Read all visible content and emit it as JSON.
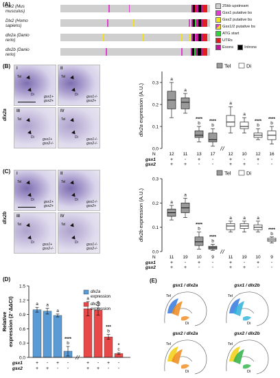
{
  "panel_a": {
    "letter": "(A)",
    "tracks": [
      {
        "label_line1": "Dlx2 (Mus",
        "label_line2": "musculus)"
      },
      {
        "label_line1": "Dlx2 (Homo",
        "label_line2": "sapiens)"
      },
      {
        "label_line1": "dlx2a (Danio",
        "label_line2": "rerio)"
      },
      {
        "label_line1": "dlx2b (Danio",
        "label_line2": "rerio)"
      }
    ],
    "legend": [
      {
        "label": "25kb upstream",
        "color": "#cfcfcf"
      },
      {
        "label": "Gsx1 putative bs",
        "color": "#e23bd0"
      },
      {
        "label": "Gsx2 putative bs",
        "color": "#f2e21e"
      },
      {
        "label": "Gsx1/2 putative bs",
        "color": "#f7a64a"
      },
      {
        "label": "ATG start",
        "color": "#2fd33a"
      },
      {
        "label": "UTRs",
        "color": "#e02020"
      },
      {
        "label": "Exons",
        "color": "#c01896"
      },
      {
        "label": "Introns",
        "color": "#000000"
      }
    ]
  },
  "panel_b": {
    "letter": "(B)",
    "gene": "dlx2a",
    "photos": [
      {
        "roman": "I",
        "tel": "Tel",
        "di": "Di",
        "g1": "gsx1+",
        "g2": "gsx2+"
      },
      {
        "roman": "II",
        "tel": "Tel",
        "di": "Di",
        "g1": "gsx1-/-",
        "g2": "gsx2+"
      },
      {
        "roman": "III",
        "tel": "Tel",
        "di": "Di",
        "g1": "gsx1+",
        "g2": "gsx2-/-"
      },
      {
        "roman": "IV",
        "tel": "Tel",
        "di": "Di",
        "g1": "gsx1-/-",
        "g2": "gsx2-/-"
      }
    ]
  },
  "panel_c": {
    "letter": "(C)",
    "gene": "dlx2b",
    "photos": [
      {
        "roman": "I",
        "tel": "Tel",
        "di": "Di",
        "g1": "gsx1+",
        "g2": "gsx2+"
      },
      {
        "roman": "II",
        "tel": "Tel",
        "di": "Di",
        "g1": "gsx1-/-",
        "g2": "gsx2+"
      },
      {
        "roman": "III",
        "tel": "Tel",
        "di": "Di",
        "g1": "gsx1+",
        "g2": "gsx2-/-"
      },
      {
        "roman": "IV",
        "tel": "Tel",
        "di": "Di",
        "g1": "gsx1-/-",
        "g2": "gsx2-/-"
      }
    ]
  },
  "panel_d": {
    "letter": "(D)"
  },
  "panel_e": {
    "letter": "(E)",
    "titles": [
      "gsx1 / dlx2a",
      "gsx1 / dlx2b",
      "gsx2 / dlx2a",
      "gsx2 / dlx2b"
    ],
    "tel": "Tel",
    "di": "Di"
  },
  "chart_data": [
    {
      "type": "box",
      "ylabel": "dlx2a expression (A.U.)",
      "ylim": [
        0,
        0.35
      ],
      "yticks": [
        0,
        0.1,
        0.2,
        0.3
      ],
      "legend": [
        "Tel",
        "Di"
      ],
      "colors": {
        "Tel": "#9a9a9a",
        "Di": "#ffffff"
      },
      "row_labels": [
        "N",
        "gsx1",
        "gsx2"
      ],
      "groups": [
        {
          "region": "Tel",
          "n": "12",
          "gsx1": "+",
          "gsx2": "+",
          "min": 0.14,
          "q1": 0.18,
          "median": 0.22,
          "q3": 0.26,
          "max": 0.3,
          "sig": "a"
        },
        {
          "region": "Tel",
          "n": "11",
          "gsx1": "-",
          "gsx2": "+",
          "min": 0.16,
          "q1": 0.18,
          "median": 0.21,
          "q3": 0.23,
          "max": 0.25,
          "sig": "a"
        },
        {
          "region": "Tel",
          "n": "13",
          "gsx1": "+",
          "gsx2": "-",
          "min": 0.03,
          "q1": 0.05,
          "median": 0.06,
          "q3": 0.08,
          "max": 0.1,
          "sig": "b",
          "stars": "****"
        },
        {
          "region": "Tel",
          "n": "17",
          "gsx1": "-",
          "gsx2": "-",
          "min": 0.01,
          "q1": 0.03,
          "median": 0.04,
          "q3": 0.07,
          "max": 0.09,
          "sig": "b",
          "stars": "****"
        },
        {
          "region": "Di",
          "n": "12",
          "gsx1": "+",
          "gsx2": "+",
          "min": 0.07,
          "q1": 0.1,
          "median": 0.12,
          "q3": 0.15,
          "max": 0.19,
          "sig": "a"
        },
        {
          "region": "Di",
          "n": "10",
          "gsx1": "-",
          "gsx2": "+",
          "min": 0.07,
          "q1": 0.09,
          "median": 0.1,
          "q3": 0.12,
          "max": 0.14,
          "sig": "a"
        },
        {
          "region": "Di",
          "n": "12",
          "gsx1": "+",
          "gsx2": "-",
          "min": 0.04,
          "q1": 0.05,
          "median": 0.06,
          "q3": 0.07,
          "max": 0.09,
          "sig": "b",
          "stars": "****"
        },
        {
          "region": "Di",
          "n": "16",
          "gsx1": "-",
          "gsx2": "-",
          "min": 0.02,
          "q1": 0.04,
          "median": 0.06,
          "q3": 0.08,
          "max": 0.1,
          "sig": "b",
          "stars": "****"
        }
      ]
    },
    {
      "type": "box",
      "ylabel": "dlx2b expression (A.U.)",
      "ylim": [
        0,
        0.3
      ],
      "yticks": [
        0,
        0.1,
        0.2,
        0.3
      ],
      "legend": [
        "Tel",
        "Di"
      ],
      "colors": {
        "Tel": "#9a9a9a",
        "Di": "#ffffff"
      },
      "row_labels": [
        "N",
        "gsx1",
        "gsx2"
      ],
      "groups": [
        {
          "region": "Tel",
          "n": "11",
          "gsx1": "+",
          "gsx2": "+",
          "min": 0.13,
          "q1": 0.145,
          "median": 0.16,
          "q3": 0.175,
          "max": 0.19,
          "sig": "a"
        },
        {
          "region": "Tel",
          "n": "19",
          "gsx1": "-",
          "gsx2": "+",
          "min": 0.14,
          "q1": 0.16,
          "median": 0.18,
          "q3": 0.2,
          "max": 0.22,
          "sig": "a"
        },
        {
          "region": "Tel",
          "n": "10",
          "gsx1": "+",
          "gsx2": "-",
          "min": 0.01,
          "q1": 0.025,
          "median": 0.04,
          "q3": 0.06,
          "max": 0.08,
          "sig": "b",
          "stars": "****"
        },
        {
          "region": "Tel",
          "n": "9",
          "gsx1": "-",
          "gsx2": "-",
          "min": 0.005,
          "q1": 0.01,
          "median": 0.015,
          "q3": 0.022,
          "max": 0.03,
          "sig": "b",
          "stars": "****"
        },
        {
          "region": "Di",
          "n": "11",
          "gsx1": "+",
          "gsx2": "+",
          "min": 0.08,
          "q1": 0.09,
          "median": 0.105,
          "q3": 0.115,
          "max": 0.125,
          "sig": "a"
        },
        {
          "region": "Di",
          "n": "19",
          "gsx1": "-",
          "gsx2": "+",
          "min": 0.08,
          "q1": 0.095,
          "median": 0.105,
          "q3": 0.115,
          "max": 0.125,
          "sig": "a"
        },
        {
          "region": "Di",
          "n": "10",
          "gsx1": "+",
          "gsx2": "-",
          "min": 0.08,
          "q1": 0.09,
          "median": 0.1,
          "q3": 0.11,
          "max": 0.125,
          "sig": "a"
        },
        {
          "region": "Di",
          "n": "9",
          "gsx1": "-",
          "gsx2": "-",
          "min": 0.035,
          "q1": 0.042,
          "median": 0.048,
          "q3": 0.055,
          "max": 0.06,
          "sig": "b",
          "stars": "****"
        }
      ]
    },
    {
      "type": "bar",
      "ylabel_line1": "Relative",
      "ylabel_line2": "expression (2⁻ΔΔCt)",
      "ylim": [
        0,
        1.5
      ],
      "yticks": [
        "0.0",
        "0.3",
        "0.6",
        "0.9",
        "1.2",
        "1.5"
      ],
      "row_labels": [
        "gsx1",
        "gsx2"
      ],
      "series": [
        {
          "name": "dlx2a expression",
          "color": "#5b9bd5",
          "gsx1": [
            "+",
            "-",
            "+",
            "-"
          ],
          "gsx2": [
            "+",
            "+",
            "-",
            "-"
          ],
          "values": [
            1.0,
            0.97,
            0.88,
            0.13
          ],
          "errors": [
            0.05,
            0.06,
            0.03,
            0.1
          ],
          "sig": [
            "a",
            "a",
            "a",
            "b"
          ],
          "stars": [
            "",
            "",
            "",
            "****"
          ]
        },
        {
          "name": "dlx2b expression",
          "color": "#e84848",
          "gsx1": [
            "+",
            "-",
            "+",
            "-"
          ],
          "gsx2": [
            "+",
            "+",
            "-",
            "-"
          ],
          "values": [
            1.02,
            0.99,
            0.43,
            0.08
          ],
          "errors": [
            0.15,
            0.1,
            0.05,
            0.02
          ],
          "sig": [
            "a",
            "a",
            "b",
            "c"
          ],
          "stars": [
            "",
            "",
            "***",
            "*"
          ]
        }
      ]
    }
  ]
}
